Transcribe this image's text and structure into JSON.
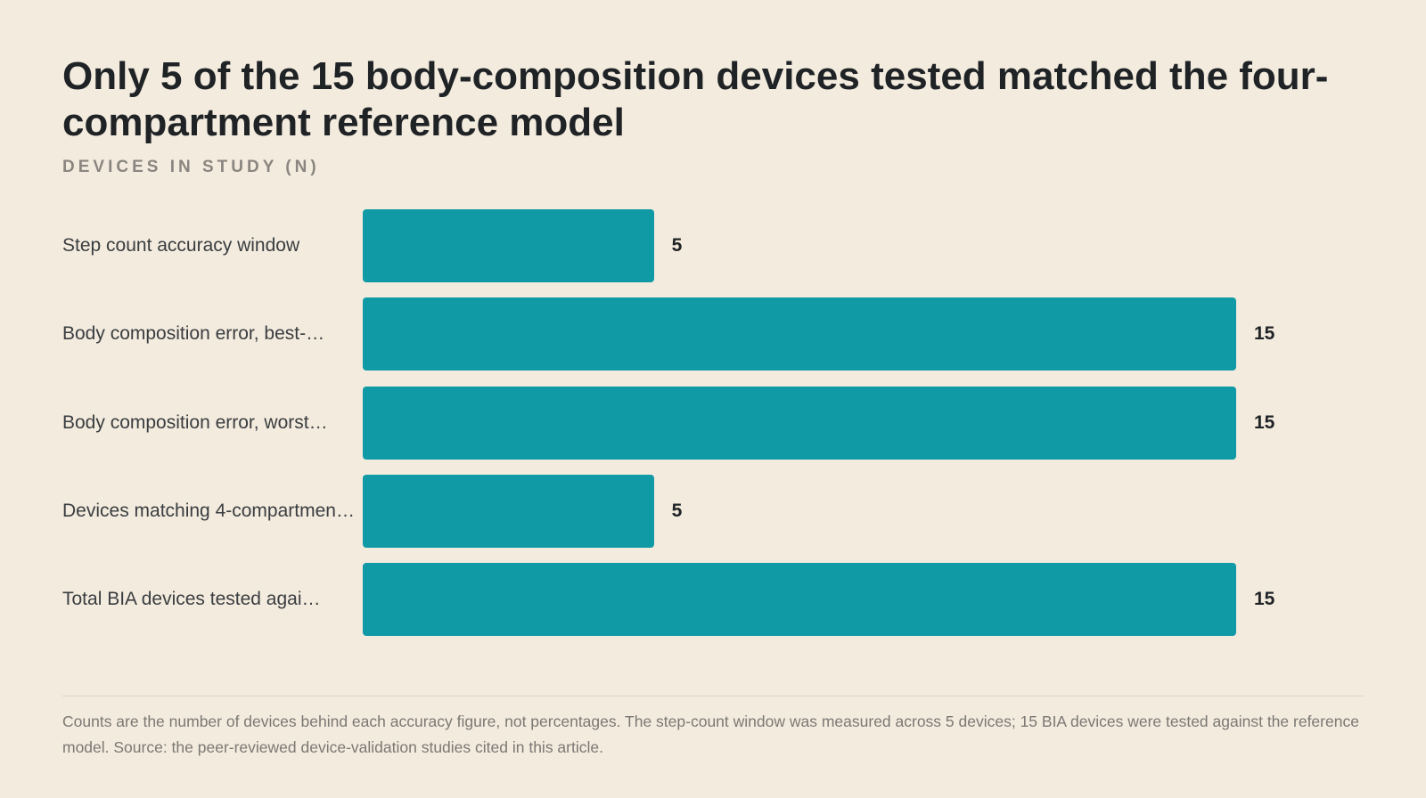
{
  "chart_data": {
    "type": "bar",
    "orientation": "horizontal",
    "title": "Only 5 of the 15 body-composition devices tested matched the four-compartment reference model",
    "subtitle": "DEVICES IN STUDY (N)",
    "categories": [
      "Step count accuracy window",
      "Body composition error, best-…",
      "Body composition error, worst…",
      "Devices matching 4-compartmen…",
      "Total BIA devices tested agai…"
    ],
    "values": [
      5,
      15,
      15,
      5,
      15
    ],
    "value_labels": [
      "5",
      "15",
      "15",
      "5",
      "15"
    ],
    "xlim": [
      0,
      15
    ],
    "grid": false,
    "legend": "none",
    "bar_color": "#0f9aa6"
  },
  "footnote": "Counts are the number of devices behind each accuracy figure, not percentages. The step-count window was measured across 5 devices; 15 BIA devices were tested against the reference model. Source: the peer-reviewed device-validation studies cited in this article."
}
